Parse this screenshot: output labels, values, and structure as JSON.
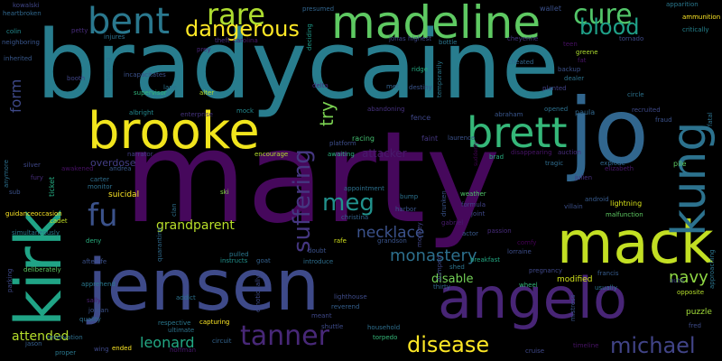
{
  "words": [
    {
      "text": "marty",
      "color": "#46085c"
    },
    {
      "text": "bradycaine",
      "color": "#287d8e"
    },
    {
      "text": "jensen",
      "color": "#3e4a89"
    },
    {
      "text": "madeline",
      "color": "#5ec962"
    },
    {
      "text": "kirk",
      "color": "#20a486"
    },
    {
      "text": "mack",
      "color": "#c2df23"
    },
    {
      "text": "brooke",
      "color": "#f1e51d"
    },
    {
      "text": "angelo",
      "color": "#482576"
    },
    {
      "text": "jo",
      "color": "#31668e"
    },
    {
      "text": "kung",
      "color": "#2c728e"
    },
    {
      "text": "brett",
      "color": "#35b779"
    },
    {
      "text": "bent",
      "color": "#2a788e"
    },
    {
      "text": "rare",
      "color": "#addc30"
    },
    {
      "text": "dangerous",
      "color": "#fde725"
    },
    {
      "text": "cure",
      "color": "#52c569"
    },
    {
      "text": "blood",
      "color": "#1fa088"
    },
    {
      "text": "tanner",
      "color": "#482878"
    },
    {
      "text": "suffering",
      "color": "#453781"
    },
    {
      "text": "disease",
      "color": "#fde725"
    },
    {
      "text": "michael",
      "color": "#414487"
    },
    {
      "text": "fu",
      "color": "#3b528b"
    },
    {
      "text": "meg",
      "color": "#21918c"
    },
    {
      "text": "monastery",
      "color": "#2d708e"
    },
    {
      "text": "necklace",
      "color": "#3b528b"
    },
    {
      "text": "try",
      "color": "#7ad151"
    },
    {
      "text": "leonard",
      "color": "#22a884"
    },
    {
      "text": "navy",
      "color": "#8fd744"
    },
    {
      "text": "attended",
      "color": "#b5de2b"
    },
    {
      "text": "grandparent",
      "color": "#b8de29"
    },
    {
      "text": "form",
      "color": "#3e4989"
    },
    {
      "text": "overdose",
      "color": "#433e85"
    },
    {
      "text": "attacker",
      "color": "#481a6c"
    },
    {
      "text": "disable",
      "color": "#73d056"
    },
    {
      "text": "suicidal",
      "color": "#fde725"
    },
    {
      "text": "puzzle",
      "color": "#a0da39"
    },
    {
      "text": "modified",
      "color": "#d0e11c"
    },
    {
      "text": "kowalski",
      "color": "#404688"
    },
    {
      "text": "heartbroken",
      "color": "#31688e"
    },
    {
      "text": "colin",
      "color": "#23898e"
    },
    {
      "text": "neighboring",
      "color": "#39558c"
    },
    {
      "text": "inherited",
      "color": "#38588c"
    },
    {
      "text": "petty",
      "color": "#472c7a"
    },
    {
      "text": "injures",
      "color": "#2d718e"
    },
    {
      "text": "presumed",
      "color": "#32658e"
    },
    {
      "text": "wallet",
      "color": "#3b518b"
    },
    {
      "text": "jonas",
      "color": "#3f4788"
    },
    {
      "text": "highest",
      "color": "#3e4989"
    },
    {
      "text": "bottle",
      "color": "#2a768e"
    },
    {
      "text": "cheyenne",
      "color": "#453882"
    },
    {
      "text": "greene",
      "color": "#addc30"
    },
    {
      "text": "teen",
      "color": "#471063"
    },
    {
      "text": "apparition",
      "color": "#2a788e"
    },
    {
      "text": "ammunition",
      "color": "#fde725"
    },
    {
      "text": "critically",
      "color": "#25838e"
    },
    {
      "text": "tornado",
      "color": "#3e4a89"
    },
    {
      "text": "prey",
      "color": "#482475"
    },
    {
      "text": "carolina",
      "color": "#48186a"
    },
    {
      "text": "theft",
      "color": "#46307e"
    },
    {
      "text": "booth",
      "color": "#404588"
    },
    {
      "text": "incapacitates",
      "color": "#3b518b"
    },
    {
      "text": "lane",
      "color": "#2c738e"
    },
    {
      "text": "supervisor",
      "color": "#31b57b"
    },
    {
      "text": "alter",
      "color": "#b5de2b"
    },
    {
      "text": "ridge",
      "color": "#25ab82"
    },
    {
      "text": "destiny",
      "color": "#3a548c"
    },
    {
      "text": "cheated",
      "color": "#31678e"
    },
    {
      "text": "backup",
      "color": "#3b528b"
    },
    {
      "text": "dealer",
      "color": "#2c738e"
    },
    {
      "text": "fat",
      "color": "#471365"
    },
    {
      "text": "planted",
      "color": "#424086"
    },
    {
      "text": "circle",
      "color": "#2c728e"
    },
    {
      "text": "delta",
      "color": "#472d7b"
    },
    {
      "text": "met",
      "color": "#33628d"
    },
    {
      "text": "mock",
      "color": "#23888e"
    },
    {
      "text": "enterprise",
      "color": "#45337d"
    },
    {
      "text": "albright",
      "color": "#23888e"
    },
    {
      "text": "abandoning",
      "color": "#46317e"
    },
    {
      "text": "opened",
      "color": "#2d708e"
    },
    {
      "text": "paula",
      "color": "#31678e"
    },
    {
      "text": "recruited",
      "color": "#3e4a89"
    },
    {
      "text": "fraud",
      "color": "#3b528b"
    },
    {
      "text": "abraham",
      "color": "#39568c"
    },
    {
      "text": "racing",
      "color": "#44bf70"
    },
    {
      "text": "platform",
      "color": "#3d4d8a"
    },
    {
      "text": "fence",
      "color": "#3f4788"
    },
    {
      "text": "faint",
      "color": "#453781"
    },
    {
      "text": "laurence",
      "color": "#3b528b"
    },
    {
      "text": "encourage",
      "color": "#b2dd2d"
    },
    {
      "text": "awaiting",
      "color": "#2ab07f"
    },
    {
      "text": "brad",
      "color": "#28ae80"
    },
    {
      "text": "disappearing",
      "color": "#481467"
    },
    {
      "text": "auction",
      "color": "#472d7b"
    },
    {
      "text": "tragic",
      "color": "#2f6c8e"
    },
    {
      "text": "explode",
      "color": "#31678e"
    },
    {
      "text": "elizabeth",
      "color": "#48186a"
    },
    {
      "text": "pile",
      "color": "#5ec962"
    },
    {
      "text": "narrator",
      "color": "#433e85"
    },
    {
      "text": "awakened",
      "color": "#471164"
    },
    {
      "text": "andrea",
      "color": "#38588c"
    },
    {
      "text": "carter",
      "color": "#2e6e8e"
    },
    {
      "text": "monitor",
      "color": "#2d708e"
    },
    {
      "text": "silver",
      "color": "#3f4889"
    },
    {
      "text": "fury",
      "color": "#472c7a"
    },
    {
      "text": "sub",
      "color": "#3b528b"
    },
    {
      "text": "guidanceoccasion",
      "color": "#fde725"
    },
    {
      "text": "cadet",
      "color": "#c0df25"
    },
    {
      "text": "simultaneously",
      "color": "#2a788e"
    },
    {
      "text": "ski",
      "color": "#86d549"
    },
    {
      "text": "appointment",
      "color": "#2d708e"
    },
    {
      "text": "bump",
      "color": "#2c728e"
    },
    {
      "text": "harbor",
      "color": "#3a548c"
    },
    {
      "text": "weather",
      "color": "#50c46a"
    },
    {
      "text": "formula",
      "color": "#414287"
    },
    {
      "text": "joint",
      "color": "#3e4989"
    },
    {
      "text": "gabriel",
      "color": "#481c6e"
    },
    {
      "text": "villain",
      "color": "#3c508b"
    },
    {
      "text": "lightning",
      "color": "#d8e219"
    },
    {
      "text": "malfunction",
      "color": "#5ec962"
    },
    {
      "text": "julien",
      "color": "#472f7d"
    },
    {
      "text": "android",
      "color": "#375a8c"
    },
    {
      "text": "christina",
      "color": "#33638d"
    },
    {
      "text": "rafe",
      "color": "#d2e21b"
    },
    {
      "text": "grandson",
      "color": "#3a548c"
    },
    {
      "text": "actor",
      "color": "#38598c"
    },
    {
      "text": "passion",
      "color": "#472c7a"
    },
    {
      "text": "lorraine",
      "color": "#3d4e8a"
    },
    {
      "text": "comfy",
      "color": "#440154"
    },
    {
      "text": "deny",
      "color": "#29af7f"
    },
    {
      "text": "afterlife",
      "color": "#3b518b"
    },
    {
      "text": "instructs",
      "color": "#21918c"
    },
    {
      "text": "pulled",
      "color": "#2a788e"
    },
    {
      "text": "goat",
      "color": "#34618d"
    },
    {
      "text": "doubt",
      "color": "#3b528b"
    },
    {
      "text": "introduce",
      "color": "#2e6f8e"
    },
    {
      "text": "breakfast",
      "color": "#23a983"
    },
    {
      "text": "shed",
      "color": "#2c738e"
    },
    {
      "text": "thirty",
      "color": "#31678e"
    },
    {
      "text": "pregnancy",
      "color": "#3f4889"
    },
    {
      "text": "francis",
      "color": "#365c8d"
    },
    {
      "text": "wheel",
      "color": "#32b67a"
    },
    {
      "text": "opposite",
      "color": "#b5de2b"
    },
    {
      "text": "auto",
      "color": "#3f4788"
    },
    {
      "text": "deliberately",
      "color": "#5ec962"
    },
    {
      "text": "apprehend",
      "color": "#2a788e"
    },
    {
      "text": "sally",
      "color": "#481f70"
    },
    {
      "text": "jordan",
      "color": "#3b528b"
    },
    {
      "text": "quality",
      "color": "#2e6e8e"
    },
    {
      "text": "addict",
      "color": "#2c728e"
    },
    {
      "text": "respective",
      "color": "#2a788e"
    },
    {
      "text": "capturing",
      "color": "#fde725"
    },
    {
      "text": "ultimate",
      "color": "#2c738e"
    },
    {
      "text": "meant",
      "color": "#3f4889"
    },
    {
      "text": "shuttle",
      "color": "#3e4c8a"
    },
    {
      "text": "household",
      "color": "#2e6f8e"
    },
    {
      "text": "torpedo",
      "color": "#35b779"
    },
    {
      "text": "reverend",
      "color": "#35608d"
    },
    {
      "text": "lighthouse",
      "color": "#3e4c8a"
    },
    {
      "text": "reservation",
      "color": "#2e6f8e"
    },
    {
      "text": "jason",
      "color": "#355f8d"
    },
    {
      "text": "wing",
      "color": "#3e4989"
    },
    {
      "text": "ended",
      "color": "#fde725"
    },
    {
      "text": "hoffman",
      "color": "#48186a"
    },
    {
      "text": "circuit",
      "color": "#33638d"
    },
    {
      "text": "proper",
      "color": "#2a788e"
    },
    {
      "text": "cruise",
      "color": "#3f4889"
    },
    {
      "text": "timeline",
      "color": "#471365"
    },
    {
      "text": "fred",
      "color": "#3e4c8a"
    },
    {
      "text": "mistress",
      "color": "#3a548c"
    },
    {
      "text": "usually",
      "color": "#2c728e"
    },
    {
      "text": "quarantine",
      "color": "#2f6b8e"
    },
    {
      "text": "clan",
      "color": "#2e6f8e"
    },
    {
      "text": "ticket",
      "color": "#25ab82"
    },
    {
      "text": "anymore",
      "color": "#2d708e"
    },
    {
      "text": "emotionally",
      "color": "#3e4a89"
    },
    {
      "text": "deciding",
      "color": "#1e9b8a"
    },
    {
      "text": "drunken",
      "color": "#3a548c"
    },
    {
      "text": "monkey",
      "color": "#414487"
    },
    {
      "text": "parking",
      "color": "#3e4989"
    },
    {
      "text": "approaching",
      "color": "#2b758e"
    },
    {
      "text": "arguing",
      "color": "#2c728e"
    },
    {
      "text": "fatal",
      "color": "#2c728e"
    },
    {
      "text": "dumped",
      "color": "#3f4788"
    },
    {
      "text": "temporarily",
      "color": "#2a788e"
    },
    {
      "text": "suddenly",
      "color": "#440154"
    }
  ]
}
